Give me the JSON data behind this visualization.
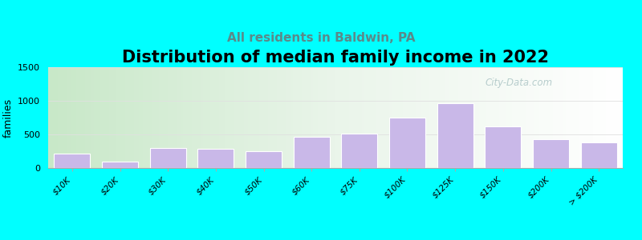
{
  "title": "Distribution of median family income in 2022",
  "subtitle": "All residents in Baldwin, PA",
  "ylabel": "families",
  "categories": [
    "$10K",
    "$20K",
    "$30K",
    "$40K",
    "$50K",
    "$60K",
    "$75K",
    "$100K",
    "$125K",
    "$150K",
    "$200K",
    "> $200K"
  ],
  "values": [
    220,
    100,
    300,
    280,
    250,
    470,
    510,
    750,
    970,
    620,
    430,
    380
  ],
  "bar_color": "#c9b8e8",
  "bar_edge_color": "#ffffff",
  "background_outer": "#00ffff",
  "background_inner_topleft": "#cce8cc",
  "background_inner_right": "#f5fff5",
  "background_inner_white": "#ffffff",
  "ylim": [
    0,
    1500
  ],
  "yticks": [
    0,
    500,
    1000,
    1500
  ],
  "title_fontsize": 15,
  "subtitle_fontsize": 11,
  "subtitle_color": "#5a8a8a",
  "ylabel_fontsize": 9,
  "watermark": "City-Data.com",
  "watermark_color": "#b0c8c8",
  "grid_color": "#e0e0e0"
}
